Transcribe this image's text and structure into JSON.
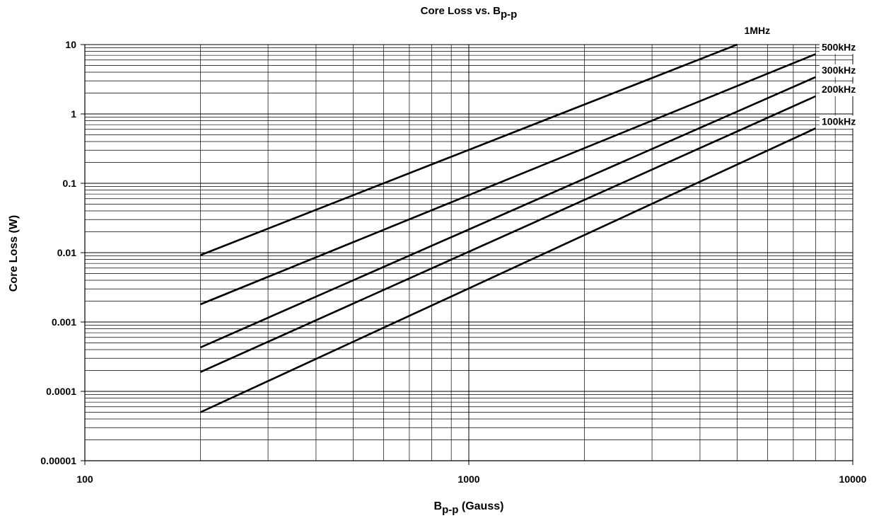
{
  "chart_data": {
    "type": "line",
    "title": "Core Loss vs. B",
    "title_subscript": "p-p",
    "xlabel_main": "B",
    "xlabel_subscript": "p-p",
    "xlabel_tail": " (Gauss)",
    "ylabel": "Core Loss (W)",
    "x_scale": "log",
    "y_scale": "log",
    "xlim": [
      100,
      10000
    ],
    "ylim": [
      1e-05,
      10
    ],
    "x_tick_labels": [
      "100",
      "1000",
      "10000"
    ],
    "y_tick_labels": [
      "10",
      "1",
      "0.1",
      "0.01",
      "0.001",
      "0.0001",
      "0.00001"
    ],
    "grid": true,
    "series": [
      {
        "name": "1MHz",
        "x": [
          200,
          5000
        ],
        "y": [
          0.0092,
          10.0
        ]
      },
      {
        "name": "500kHz",
        "x": [
          200,
          8000
        ],
        "y": [
          0.0018,
          7.3
        ]
      },
      {
        "name": "300kHz",
        "x": [
          200,
          8000
        ],
        "y": [
          0.00043,
          3.4
        ]
      },
      {
        "name": "200kHz",
        "x": [
          200,
          8000
        ],
        "y": [
          0.00019,
          1.8
        ]
      },
      {
        "name": "100kHz",
        "x": [
          200,
          8000
        ],
        "y": [
          5e-05,
          0.62
        ]
      }
    ]
  }
}
